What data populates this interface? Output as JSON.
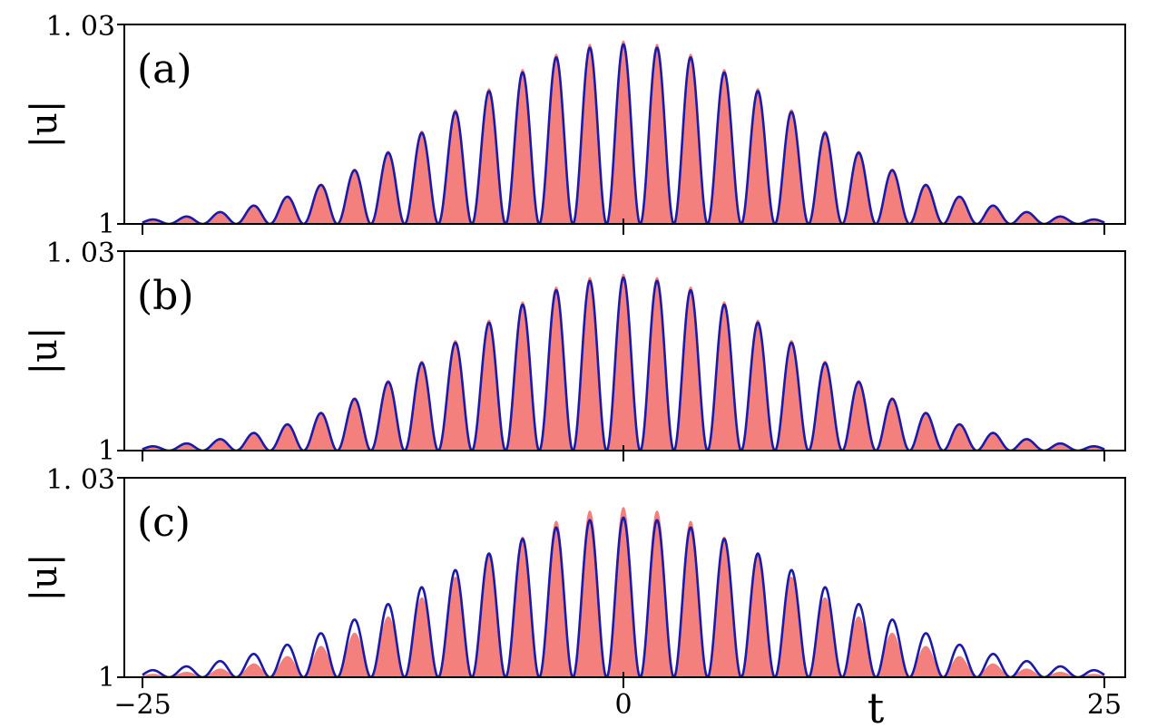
{
  "chart_data": [
    {
      "type": "area",
      "panel_label": "(a)",
      "ylabel": "|u|",
      "xlabel": "",
      "xlim": [
        -25,
        25
      ],
      "ylim": [
        1,
        1.03
      ],
      "ytick_labels": [
        "1",
        "1. 03"
      ],
      "xticks": [
        -25,
        0,
        25
      ],
      "xtick_labels": [],
      "envelope_sigma": 9.0,
      "peaks": [
        1.0,
        1.0
      ],
      "series": [
        {
          "color": "#f4807d",
          "style": "filled",
          "peak_amplitude": 0.0275,
          "modulation_period": 1.75
        },
        {
          "color": "#1c1aa8",
          "style": "line",
          "peak_amplitude": 0.027,
          "modulation_period": 1.75
        }
      ]
    },
    {
      "type": "area",
      "panel_label": "(b)",
      "ylabel": "|u|",
      "xlabel": "",
      "xlim": [
        -25,
        25
      ],
      "ylim": [
        1,
        1.03
      ],
      "ytick_labels": [
        "1",
        "1. 03"
      ],
      "xticks": [
        -25,
        0,
        25
      ],
      "xtick_labels": [],
      "envelope_sigma": 9.0,
      "series": [
        {
          "color": "#f4807d",
          "style": "filled",
          "peak_amplitude": 0.0265,
          "modulation_period": 1.75
        },
        {
          "color": "#1c1aa8",
          "style": "line",
          "peak_amplitude": 0.026,
          "modulation_period": 1.75
        }
      ]
    },
    {
      "type": "area",
      "panel_label": "(c)",
      "ylabel": "|u|",
      "xlabel": "t",
      "xlim": [
        -25,
        25
      ],
      "ylim": [
        1,
        1.03
      ],
      "ytick_labels": [
        "1",
        "1. 03"
      ],
      "xticks": [
        -25,
        0,
        25
      ],
      "xtick_labels": [
        "−25",
        "0",
        "25"
      ],
      "series": [
        {
          "color": "#f4807d",
          "style": "filled",
          "peak_amplitude": 0.0255,
          "modulation_period": 1.75,
          "envelope_sigma": 8.5
        },
        {
          "color": "#1c1aa8",
          "style": "line",
          "peak_amplitude": 0.024,
          "modulation_period": 1.75,
          "envelope_sigma": 9.8
        }
      ]
    }
  ]
}
